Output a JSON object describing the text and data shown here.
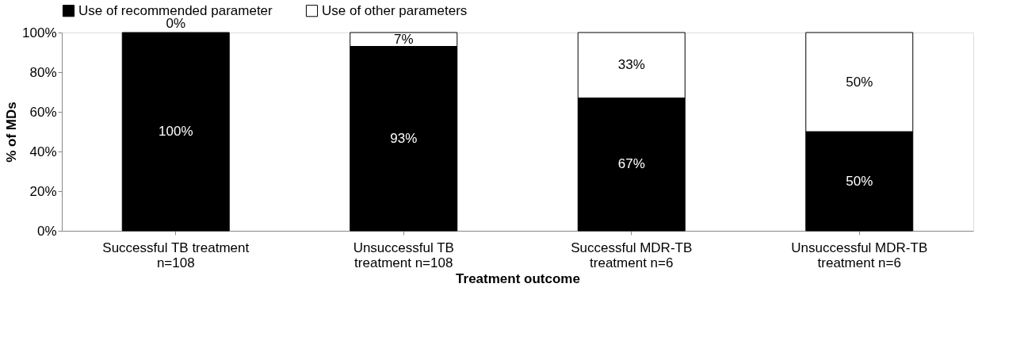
{
  "chart_data": {
    "type": "bar",
    "stacked": true,
    "xlabel": "Treatment outcome",
    "ylabel": "% of MDs",
    "categories": [
      "Successful TB treatment\nn=108",
      "Unsuccessful TB\ntreatment             n=108",
      "Successful MDR-TB\ntreatment        n=6",
      "Unsuccessful MDR-TB\ntreatment                 n=6"
    ],
    "series": [
      {
        "name": "Use of recommended parameter",
        "color": "#000000",
        "values": [
          100,
          93,
          67,
          50
        ],
        "value_labels": [
          "100%",
          "93%",
          "67%",
          "50%"
        ]
      },
      {
        "name": "Use of other parameters",
        "color": "#ffffff",
        "values": [
          0,
          7,
          33,
          50
        ],
        "value_labels": [
          "0%",
          "7%",
          "33%",
          "50%"
        ]
      }
    ],
    "ylim": [
      0,
      100
    ],
    "yticks": [
      {
        "value": 0,
        "label": "0%"
      },
      {
        "value": 20,
        "label": "20%"
      },
      {
        "value": 40,
        "label": "40%"
      },
      {
        "value": 60,
        "label": "60%"
      },
      {
        "value": 80,
        "label": "80%"
      },
      {
        "value": 100,
        "label": "100%"
      }
    ],
    "grid": false,
    "legend": "top"
  }
}
